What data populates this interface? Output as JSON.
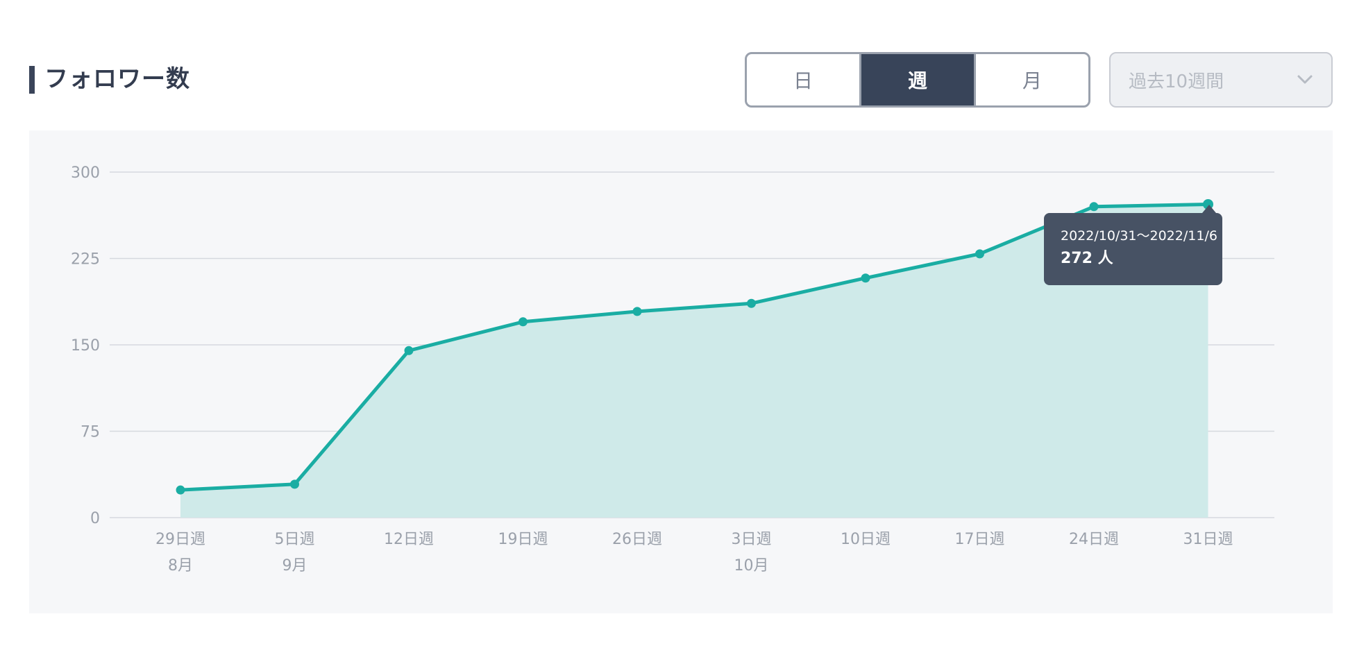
{
  "header": {
    "title": "フォロワー数"
  },
  "period_tabs": [
    {
      "label": "日",
      "active": false
    },
    {
      "label": "週",
      "active": true
    },
    {
      "label": "月",
      "active": false
    }
  ],
  "range_select": {
    "value": "過去10週間",
    "icon": "chevron-down-icon"
  },
  "tooltip": {
    "date_range": "2022/10/31〜2022/11/6",
    "value_text": "272 人"
  },
  "colors": {
    "line": "#1aada3",
    "fill": "#cfeae9",
    "grid": "#d5d9df",
    "axis_text": "#9aa0aa",
    "active_tab": "#384459",
    "tooltip_bg": "#475264"
  },
  "chart_data": {
    "type": "area",
    "title": "フォロワー数",
    "x": [
      "29日週",
      "5日週",
      "12日週",
      "19日週",
      "26日週",
      "3日週",
      "10日週",
      "17日週",
      "24日週",
      "31日週"
    ],
    "x_month_labels": [
      "8月",
      "9月",
      "",
      "",
      "",
      "10月",
      "",
      "",
      "",
      ""
    ],
    "series": [
      {
        "values": [
          24,
          29,
          145,
          170,
          179,
          186,
          208,
          229,
          270,
          272
        ]
      }
    ],
    "ylim": [
      0,
      300
    ],
    "yticks": [
      0,
      75,
      150,
      225,
      300
    ],
    "grid": true,
    "legend": "none",
    "highlight_index": 9
  }
}
